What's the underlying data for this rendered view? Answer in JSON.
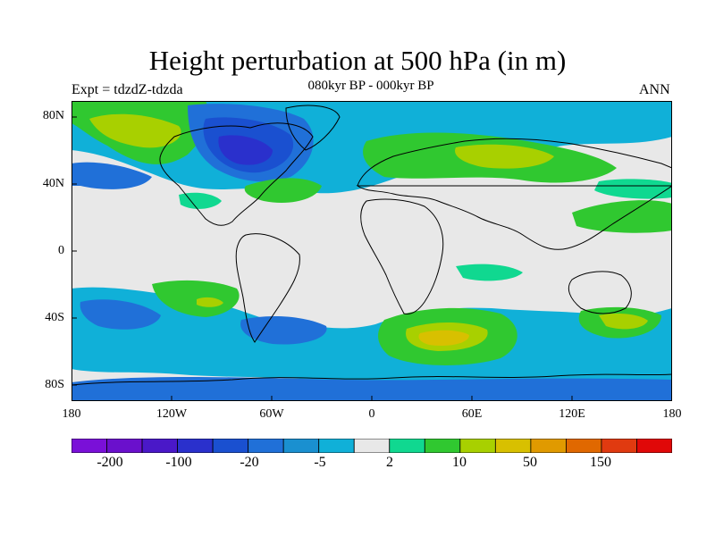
{
  "title": "Height perturbation at 500 hPa (in m)",
  "subtitle": "080kyr BP - 000kyr BP",
  "experiment": "Expt = tdzdZ-tdzda",
  "season": "ANN",
  "map": {
    "lat_labels": [
      "80N",
      "40N",
      "0",
      "40S",
      "80S"
    ],
    "lon_labels": [
      "180",
      "120W",
      "60W",
      "0",
      "60E",
      "120E",
      "180"
    ]
  },
  "colorbar": {
    "labels": [
      "-200",
      "-100",
      "-20",
      "-5",
      "2",
      "10",
      "50",
      "150"
    ],
    "colors": [
      "#7a10d8",
      "#6a10cc",
      "#4a18c8",
      "#2a30cc",
      "#1a50d0",
      "#2070d8",
      "#1a90d0",
      "#10b0d8",
      "#e8e8e8",
      "#10d890",
      "#30c830",
      "#a8d000",
      "#d8c000",
      "#e09a00",
      "#e06800",
      "#e03a10",
      "#e00808"
    ]
  },
  "colors": {
    "neutral": "#e8e8e8",
    "cyan": "#10b0d8",
    "lightblue": "#1a90d0",
    "blue": "#2070d8",
    "darkblue": "#1a50d0",
    "navy": "#2a30cc",
    "mint": "#10d890",
    "green": "#30c830",
    "yellowgreen": "#a8d000",
    "gold": "#d8c000",
    "orange": "#e09a00"
  }
}
